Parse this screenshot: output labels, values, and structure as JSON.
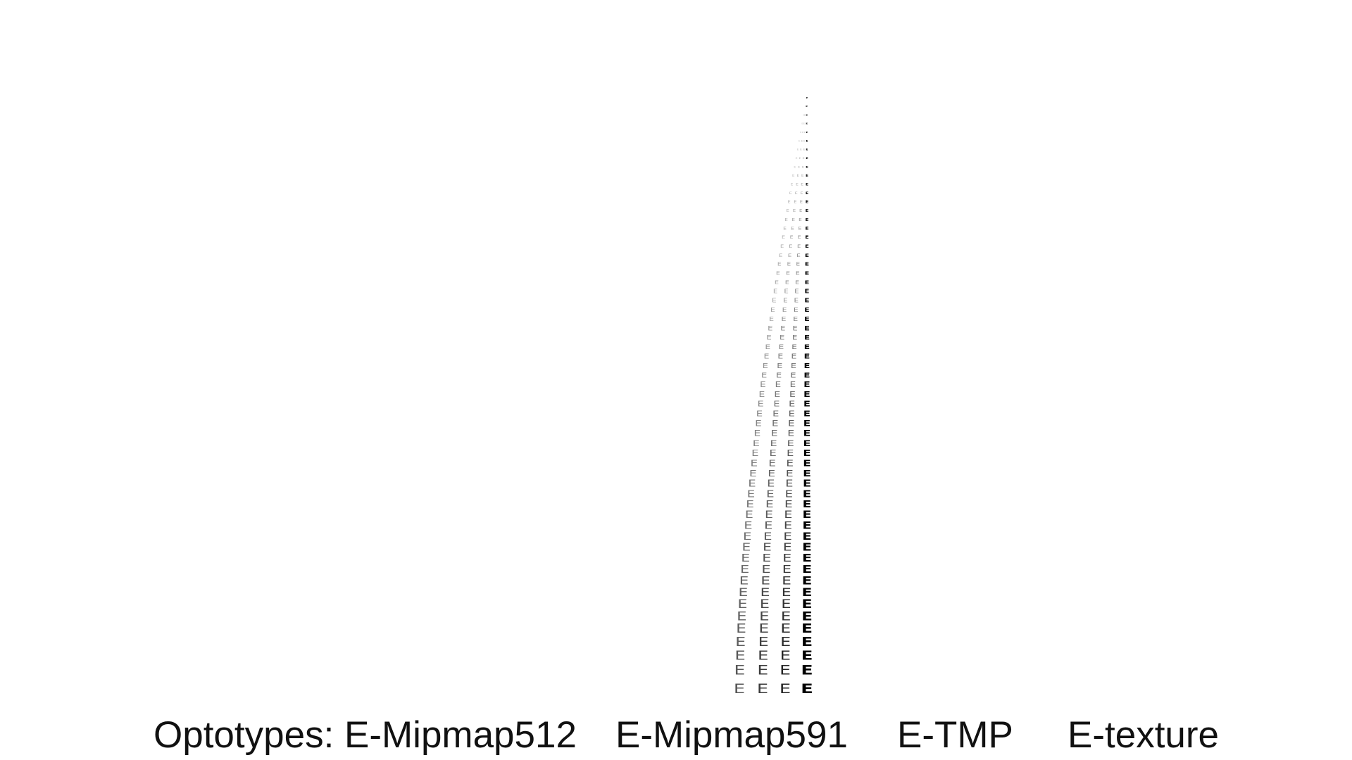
{
  "captions": [
    "Optotypes: E-Mipmap512",
    "E-Mipmap591",
    "E-TMP",
    "E-texture"
  ],
  "optotype_glyph": "E",
  "columns": [
    {
      "name": "E-Mipmap512",
      "color": "#555555"
    },
    {
      "name": "E-Mipmap591",
      "color": "#3a3a3a"
    },
    {
      "name": "E-TMP",
      "color": "#222222"
    },
    {
      "name": "E-texture",
      "color": "#000000"
    }
  ]
}
